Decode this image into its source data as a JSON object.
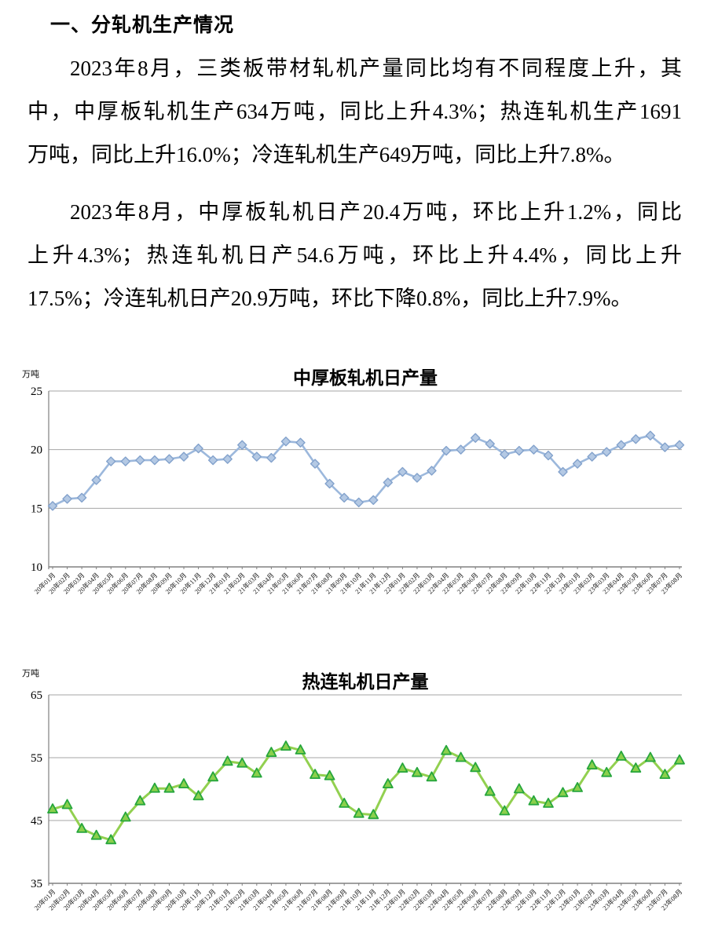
{
  "page": {
    "heading": "一、分轧机生产情况",
    "paragraphs": [
      {
        "lines": [
          "2023年8月，三类板带材轧机产量同比均有不同程度上升，其",
          "中，中厚板轧机生产634万吨，同比上升4.3%；热连轧机生产1691",
          "万吨，同比上升16.0%；冷连轧机生产649万吨，同比上升7.8%。"
        ]
      },
      {
        "lines": [
          "2023年8月，中厚板轧机日产20.4万吨，环比上升1.2%，同比",
          "上升4.3%；热连轧机日产54.6万吨，环比上升4.4%，同比上升",
          "17.5%；冷连轧机日产20.9万吨，环比下降0.8%，同比上升7.9%。"
        ]
      }
    ]
  },
  "chart_data": [
    {
      "type": "line",
      "title": "中厚板轧机日产量",
      "unit_label": "万吨",
      "xlabel": "",
      "ylabel": "",
      "ylim": [
        10,
        25
      ],
      "yticks": [
        10,
        15,
        20,
        25
      ],
      "grid": true,
      "legend": "none",
      "marker": "diamond",
      "line_color": "#9CB8DC",
      "marker_fill": "#B4C9E4",
      "marker_stroke": "#83A2CC",
      "grid_color": "#A6A6A6",
      "axis_color": "#808080",
      "categories": [
        "20年01月",
        "20年02月",
        "20年03月",
        "20年04月",
        "20年05月",
        "20年06月",
        "20年07月",
        "20年08月",
        "20年09月",
        "20年10月",
        "20年11月",
        "20年12月",
        "21年01月",
        "21年02月",
        "21年03月",
        "21年04月",
        "21年05月",
        "21年06月",
        "21年07月",
        "21年08月",
        "21年09月",
        "21年10月",
        "21年11月",
        "21年12月",
        "22年01月",
        "22年02月",
        "22年03月",
        "22年04月",
        "22年05月",
        "22年06月",
        "22年07月",
        "22年08月",
        "22年09月",
        "22年10月",
        "22年11月",
        "22年12月",
        "23年01月",
        "23年02月",
        "23年03月",
        "23年04月",
        "23年05月",
        "23年06月",
        "23年07月",
        "23年08月"
      ],
      "values": [
        15.2,
        15.8,
        15.9,
        17.4,
        19.0,
        19.0,
        19.1,
        19.1,
        19.2,
        19.4,
        20.1,
        19.1,
        19.2,
        20.4,
        19.4,
        19.3,
        20.7,
        20.6,
        18.8,
        17.1,
        15.9,
        15.5,
        15.7,
        17.2,
        18.1,
        17.6,
        18.2,
        19.9,
        20.0,
        21.0,
        20.5,
        19.6,
        19.9,
        20.0,
        19.5,
        18.1,
        18.8,
        19.4,
        19.8,
        20.4,
        20.9,
        21.2,
        20.2,
        20.4
      ]
    },
    {
      "type": "line",
      "title": "热连轧机日产量",
      "unit_label": "万吨",
      "xlabel": "",
      "ylabel": "",
      "ylim": [
        35,
        65
      ],
      "yticks": [
        35,
        45,
        55,
        65
      ],
      "grid": true,
      "legend": "none",
      "marker": "triangle",
      "line_color": "#92D050",
      "marker_fill": "#8BD04C",
      "marker_stroke": "#26A63C",
      "grid_color": "#A6A6A6",
      "axis_color": "#808080",
      "categories": [
        "20年01月",
        "20年02月",
        "20年03月",
        "20年04月",
        "20年05月",
        "20年06月",
        "20年07月",
        "20年08月",
        "20年09月",
        "20年10月",
        "20年11月",
        "20年12月",
        "21年01月",
        "21年02月",
        "21年03月",
        "21年04月",
        "21年05月",
        "21年06月",
        "21年07月",
        "21年08月",
        "21年09月",
        "21年10月",
        "21年11月",
        "21年12月",
        "22年01月",
        "22年02月",
        "22年03月",
        "22年04月",
        "22年05月",
        "22年06月",
        "22年07月",
        "22年08月",
        "22年09月",
        "22年10月",
        "22年11月",
        "22年12月",
        "23年01月",
        "23年02月",
        "23年03月",
        "23年04月",
        "23年05月",
        "23年06月",
        "23年07月",
        "23年08月"
      ],
      "values": [
        46.8,
        47.5,
        43.7,
        42.6,
        41.9,
        45.5,
        48.1,
        50.1,
        50.1,
        50.8,
        48.9,
        51.9,
        54.4,
        54.1,
        52.5,
        55.8,
        56.8,
        56.2,
        52.3,
        52.1,
        47.7,
        46.1,
        45.9,
        50.8,
        53.3,
        52.6,
        51.9,
        56.1,
        55.0,
        53.4,
        49.6,
        46.5,
        50.0,
        48.1,
        47.7,
        49.4,
        50.2,
        53.8,
        52.6,
        55.2,
        53.3,
        55.0,
        52.3,
        54.6
      ]
    }
  ]
}
